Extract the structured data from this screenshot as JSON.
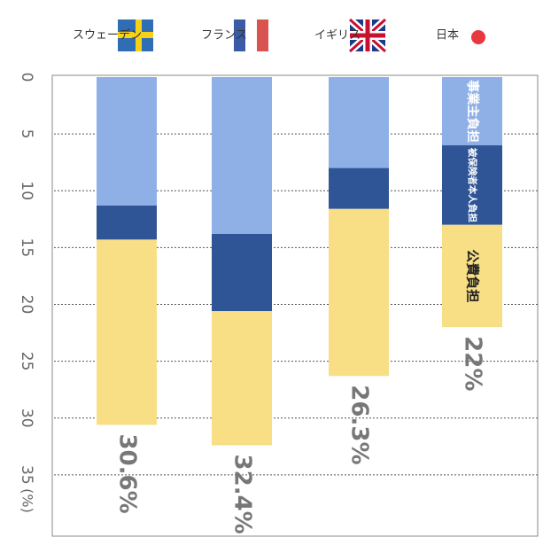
{
  "chart_data": {
    "type": "stacked-bar",
    "categories": [
      "日本",
      "イギリス",
      "フランス",
      "スウェーデン"
    ],
    "series": [
      {
        "name": "事業主負担",
        "color": "#8fb0e6",
        "values": [
          6,
          8,
          13.8,
          11.3
        ]
      },
      {
        "name": "被保険者本人負担",
        "color": "#2f5597",
        "values": [
          7,
          3.6,
          6.8,
          3
        ]
      },
      {
        "name": "公費負担",
        "color": "#f8df86",
        "values": [
          9,
          14.7,
          11.8,
          16.3
        ]
      }
    ],
    "totals": {
      "values": [
        22,
        26.3,
        32.4,
        30.6
      ],
      "value_labels": [
        "22%",
        "26.3%",
        "32.4%",
        "30.6%"
      ]
    },
    "y_label": "(%)",
    "ylim": [
      0,
      40
    ],
    "yticks": [
      0,
      5,
      10,
      15,
      20,
      25,
      30,
      35
    ],
    "grid": true
  }
}
